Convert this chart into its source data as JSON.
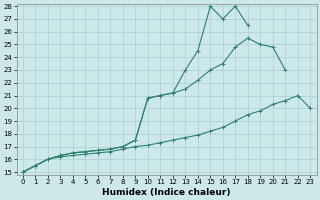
{
  "xlabel": "Humidex (Indice chaleur)",
  "x": [
    0,
    1,
    2,
    3,
    4,
    5,
    6,
    7,
    8,
    9,
    10,
    11,
    12,
    13,
    14,
    15,
    16,
    17,
    18,
    19,
    20,
    21,
    22,
    23
  ],
  "line1": [
    15,
    15.5,
    16.0,
    16.3,
    16.5,
    16.6,
    16.7,
    16.8,
    17.0,
    17.5,
    20.8,
    21.0,
    21.2,
    23.0,
    24.5,
    28.0,
    27.0,
    28.0,
    26.5,
    null,
    null,
    null,
    null,
    null
  ],
  "line2": [
    15,
    15.5,
    16.0,
    16.3,
    16.5,
    16.6,
    16.7,
    16.8,
    17.0,
    17.5,
    20.8,
    21.0,
    21.2,
    21.5,
    22.2,
    23.0,
    23.5,
    24.8,
    25.5,
    25.0,
    24.8,
    23.0,
    null,
    null
  ],
  "line3": [
    15,
    15.5,
    16.0,
    16.2,
    16.3,
    16.4,
    16.5,
    16.6,
    16.8,
    17.0,
    17.1,
    17.3,
    17.5,
    17.7,
    17.9,
    18.2,
    18.5,
    19.0,
    19.5,
    19.8,
    20.3,
    20.6,
    21.0,
    20.0
  ],
  "color": "#2e7f74",
  "bg_color": "#cce8e8",
  "grid_color": "#aacfcf",
  "ylim": [
    15,
    28
  ],
  "xlim": [
    -0.5,
    23.5
  ],
  "yticks": [
    15,
    16,
    17,
    18,
    19,
    20,
    21,
    22,
    23,
    24,
    25,
    26,
    27,
    28
  ],
  "xticks": [
    0,
    1,
    2,
    3,
    4,
    5,
    6,
    7,
    8,
    9,
    10,
    11,
    12,
    13,
    14,
    15,
    16,
    17,
    18,
    19,
    20,
    21,
    22,
    23
  ],
  "tick_fontsize": 5.0,
  "xlabel_fontsize": 6.5,
  "marker": "+"
}
